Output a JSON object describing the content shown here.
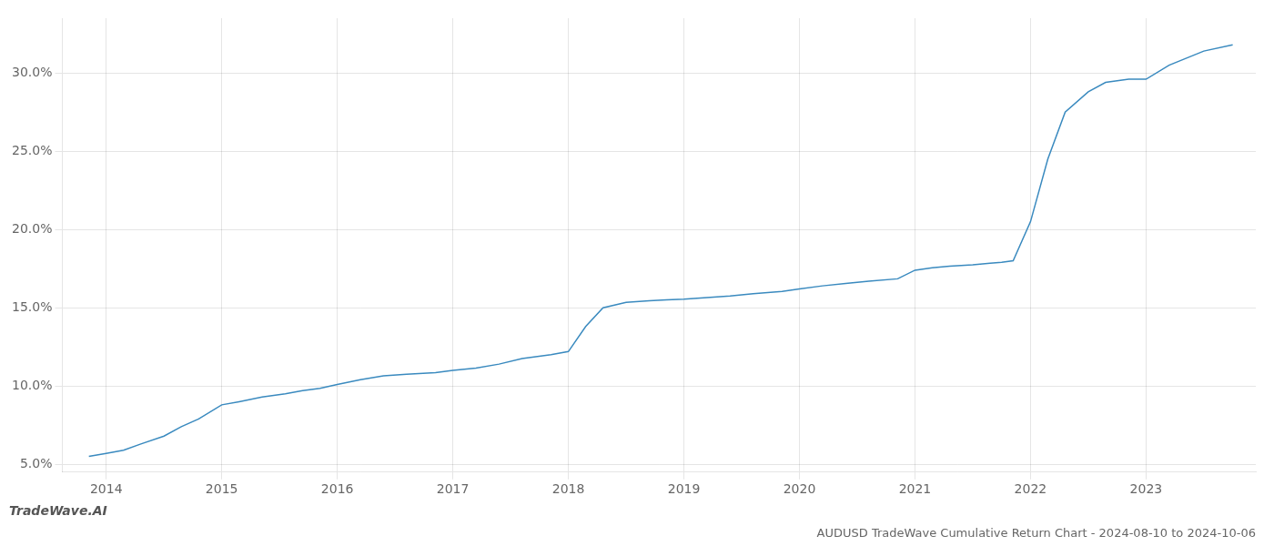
{
  "chart_data": {
    "type": "line",
    "title": "AUDUSD TradeWave Cumulative Return Chart - 2024-08-10 to 2024-10-06",
    "annotations": [
      "TradeWave.AI"
    ],
    "color": "#3a8abf",
    "grid": true,
    "x": [
      2013.85,
      2014.0,
      2014.15,
      2014.3,
      2014.5,
      2014.65,
      2014.8,
      2015.0,
      2015.15,
      2015.35,
      2015.55,
      2015.7,
      2015.85,
      2016.0,
      2016.2,
      2016.4,
      2016.6,
      2016.85,
      2017.0,
      2017.2,
      2017.4,
      2017.6,
      2017.85,
      2018.0,
      2018.15,
      2018.3,
      2018.5,
      2018.7,
      2018.85,
      2019.0,
      2019.2,
      2019.4,
      2019.6,
      2019.85,
      2020.0,
      2020.2,
      2020.4,
      2020.6,
      2020.85,
      2021.0,
      2021.15,
      2021.3,
      2021.5,
      2021.65,
      2021.75,
      2021.85,
      2022.0,
      2022.15,
      2022.3,
      2022.5,
      2022.65,
      2022.85,
      2023.0,
      2023.2,
      2023.5,
      2023.75
    ],
    "values": [
      5.5,
      5.7,
      5.9,
      6.3,
      6.8,
      7.4,
      7.9,
      8.8,
      9.0,
      9.3,
      9.5,
      9.7,
      9.85,
      10.1,
      10.4,
      10.65,
      10.75,
      10.85,
      11.0,
      11.15,
      11.4,
      11.75,
      12.0,
      12.2,
      13.8,
      15.0,
      15.35,
      15.45,
      15.5,
      15.55,
      15.65,
      15.75,
      15.9,
      16.05,
      16.2,
      16.4,
      16.55,
      16.7,
      16.85,
      17.4,
      17.55,
      17.65,
      17.75,
      17.85,
      17.9,
      18.0,
      20.5,
      24.5,
      27.5,
      28.8,
      29.4,
      29.6,
      29.6,
      30.5,
      31.4,
      31.8
    ],
    "xlim": [
      2013.62,
      2023.95
    ],
    "xticks": [
      2014,
      2015,
      2016,
      2017,
      2018,
      2019,
      2020,
      2021,
      2022,
      2023
    ],
    "ylim": [
      4.5,
      33.5
    ],
    "yticks": [
      {
        "value": 5.0,
        "label": "5.0%"
      },
      {
        "value": 10.0,
        "label": "10.0%"
      },
      {
        "value": 15.0,
        "label": "15.0%"
      },
      {
        "value": 20.0,
        "label": "20.0%"
      },
      {
        "value": 25.0,
        "label": "25.0%"
      },
      {
        "value": 30.0,
        "label": "30.0%"
      }
    ]
  }
}
